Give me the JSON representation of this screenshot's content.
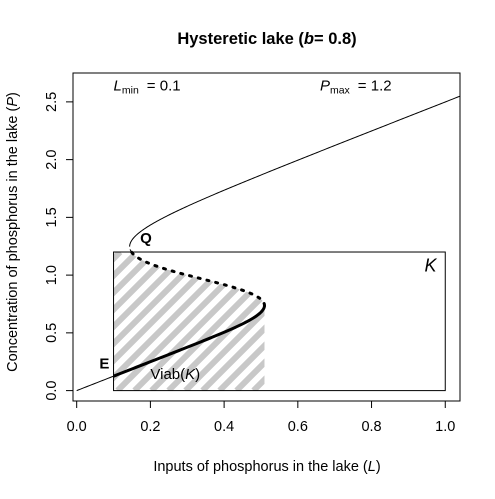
{
  "chart_data": {
    "type": "line",
    "title_parts": [
      "Hysteretic lake (",
      "b",
      "= 0.8)"
    ],
    "xlabel_parts": [
      "Inputs of phosphorus in the lake (",
      "L",
      ")"
    ],
    "ylabel_parts": [
      "Concentration of phosphorus in the lake (",
      "P",
      ")"
    ],
    "xlim": [
      -0.01,
      1.04
    ],
    "ylim": [
      -0.09,
      2.75
    ],
    "xticks": [
      0.0,
      0.2,
      0.4,
      0.6,
      0.8,
      1.0
    ],
    "xtick_labels": [
      "0.0",
      "0.2",
      "0.4",
      "0.6",
      "0.8",
      "1.0"
    ],
    "yticks": [
      0.0,
      0.5,
      1.0,
      1.5,
      2.0,
      2.5
    ],
    "ytick_labels": [
      "0.0",
      "0.5",
      "1.0",
      "1.5",
      "2.0",
      "2.5"
    ],
    "grid": false,
    "params": {
      "b": 0.8,
      "Lmin": 0.1,
      "Pmax": 1.2,
      "Lmin_label": {
        "base": "L",
        "sub": "min",
        "text": "= 0.1",
        "x": 0.1,
        "y": 2.6
      },
      "Pmax_label": {
        "base": "P",
        "sub": "max",
        "text": "= 1.2",
        "x": 0.66,
        "y": 2.6
      }
    },
    "constraint_set": {
      "label": "K",
      "x_range": [
        0.1,
        1.0
      ],
      "y_range": [
        0.0,
        1.2
      ],
      "label_pos": [
        0.96,
        1.03
      ]
    },
    "viability_kernel": {
      "label_parts": [
        "Viab(",
        "K",
        ")"
      ],
      "label_pos": [
        0.2,
        0.1
      ],
      "hatch_color": "#c8c8c8"
    },
    "points": [
      {
        "name": "E",
        "x": 0.1,
        "y": 0.135,
        "label_pos": [
          0.075,
          0.19
        ]
      },
      {
        "name": "Q",
        "x": 0.155,
        "y": 1.2,
        "label_pos": [
          0.188,
          1.28
        ]
      }
    ]
  }
}
